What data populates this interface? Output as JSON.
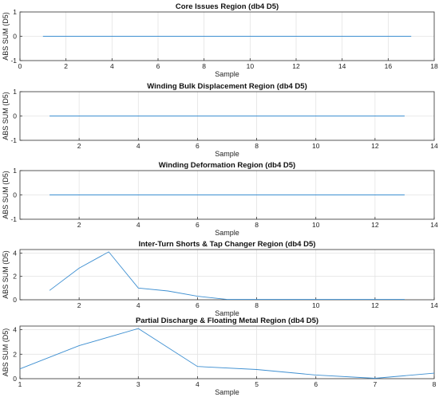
{
  "colors": {
    "line": "#3d8fd1",
    "grid": "#e3e3e3",
    "axis": "#333333"
  },
  "chart_data": [
    {
      "type": "line",
      "title": "Core Issues Region (db4 D5)",
      "xlabel": "Sample",
      "ylabel": "ABS SUM (D5)",
      "xlim": [
        0,
        18
      ],
      "ylim": [
        -1,
        1
      ],
      "xticks": [
        0,
        2,
        4,
        6,
        8,
        10,
        12,
        14,
        16,
        18
      ],
      "yticks": [
        -1,
        0,
        1
      ],
      "grid": true,
      "series": [
        {
          "x": [
            1,
            17
          ],
          "y": [
            0,
            0
          ]
        }
      ]
    },
    {
      "type": "line",
      "title": "Winding Bulk Displacement Region (db4 D5)",
      "xlabel": "Sample",
      "ylabel": "ABS SUM (D5)",
      "xlim": [
        0,
        14
      ],
      "ylim": [
        -1,
        1
      ],
      "xticks": [
        2,
        4,
        6,
        8,
        10,
        12,
        14
      ],
      "yticks": [
        -1,
        0,
        1
      ],
      "grid": true,
      "series": [
        {
          "x": [
            1,
            13
          ],
          "y": [
            0,
            0
          ]
        }
      ]
    },
    {
      "type": "line",
      "title": "Winding Deformation Region (db4 D5)",
      "xlabel": "Sample",
      "ylabel": "ABS SUM (D5)",
      "xlim": [
        0,
        14
      ],
      "ylim": [
        -1,
        1
      ],
      "xticks": [
        2,
        4,
        6,
        8,
        10,
        12,
        14
      ],
      "yticks": [
        -1,
        0,
        1
      ],
      "grid": true,
      "series": [
        {
          "x": [
            1,
            13
          ],
          "y": [
            0,
            0
          ]
        }
      ]
    },
    {
      "type": "line",
      "title": "Inter-Turn Shorts & Tap Changer Region (db4 D5)",
      "xlabel": "Sample",
      "ylabel": "ABS SUM (D5)",
      "xlim": [
        0,
        14
      ],
      "ylim": [
        0,
        4.3
      ],
      "xticks": [
        2,
        4,
        6,
        8,
        10,
        12,
        14
      ],
      "yticks": [
        0,
        2,
        4
      ],
      "grid": true,
      "series": [
        {
          "x": [
            1,
            2,
            3,
            4,
            5,
            6,
            7,
            8,
            9,
            10,
            11,
            12,
            13
          ],
          "y": [
            0.8,
            2.7,
            4.1,
            1.0,
            0.75,
            0.3,
            0.03,
            0.03,
            0.03,
            0.03,
            0.03,
            0.03,
            0.03
          ]
        }
      ]
    },
    {
      "type": "line",
      "title": "Partial Discharge & Floating Metal Region (db4 D5)",
      "xlabel": "Sample",
      "ylabel": "ABS SUM (D5)",
      "xlim": [
        1,
        8
      ],
      "ylim": [
        0,
        4.3
      ],
      "xticks": [
        1,
        2,
        3,
        4,
        5,
        6,
        7,
        8
      ],
      "yticks": [
        0,
        2,
        4
      ],
      "grid": true,
      "series": [
        {
          "x": [
            1,
            2,
            3,
            4,
            5,
            6,
            7,
            8
          ],
          "y": [
            0.8,
            2.7,
            4.1,
            1.0,
            0.75,
            0.3,
            0.03,
            0.45
          ]
        }
      ]
    }
  ]
}
